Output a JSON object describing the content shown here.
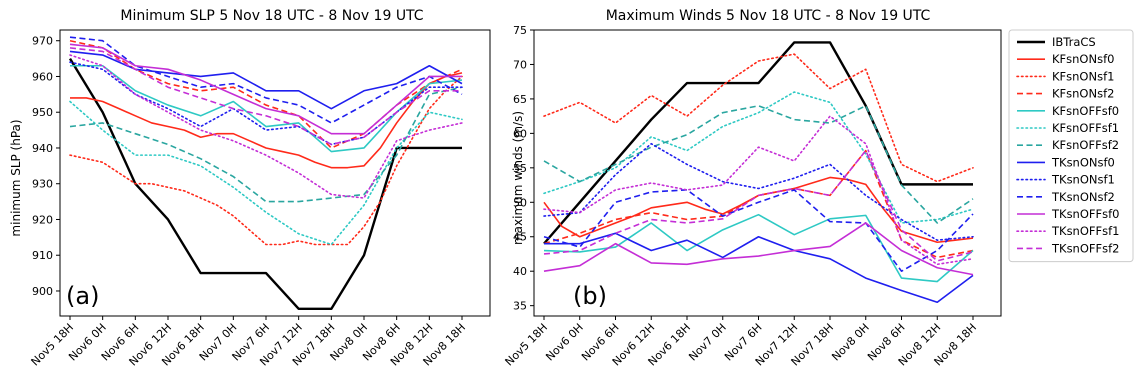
{
  "chart_data": [
    {
      "type": "line",
      "panel_label": "(a)",
      "title": "Minimum SLP 5 Nov 18 UTC - 8 Nov 19 UTC",
      "xlabel": "",
      "ylabel": "minimum SLP (hPa)",
      "ylim": [
        893,
        973
      ],
      "yticks": [
        900,
        910,
        920,
        930,
        940,
        950,
        960,
        970
      ],
      "categories": [
        "Nov5 18H",
        "Nov6 0H",
        "Nov6 6H",
        "Nov6 12H",
        "Nov6 18H",
        "Nov7 0H",
        "Nov7 6H",
        "Nov7 12H",
        "Nov7 18H",
        "Nov8 0H",
        "Nov8 6H",
        "Nov8 12H",
        "Nov8 18H"
      ],
      "grid": false,
      "series": [
        {
          "name": "IBTraCS",
          "x": [
            0,
            1,
            2,
            3,
            4,
            5,
            6,
            7,
            8,
            9,
            10,
            11,
            12
          ],
          "y": [
            965,
            950,
            930,
            920,
            905,
            905,
            905,
            895,
            895,
            910,
            940,
            940,
            940
          ]
        },
        {
          "name": "KFsnONsf0",
          "x": [
            0,
            0.5,
            1,
            1.5,
            2,
            2.5,
            3,
            3.5,
            4,
            4.5,
            5,
            5.5,
            6,
            6.5,
            7,
            7.5,
            8,
            8.5,
            9,
            9.5,
            10,
            10.5,
            11,
            11.5,
            12
          ],
          "y": [
            954,
            954,
            953,
            951,
            949,
            947,
            946,
            945,
            943,
            944,
            944,
            942,
            940,
            939,
            938,
            936,
            934.5,
            934.5,
            935,
            940,
            947,
            953,
            958,
            960,
            961
          ]
        },
        {
          "name": "KFsnONsf1",
          "x": [
            0,
            0.5,
            1,
            1.5,
            2,
            2.5,
            3,
            3.5,
            4,
            4.5,
            5,
            5.5,
            6,
            6.5,
            7,
            7.5,
            8,
            8.5,
            9,
            9.5,
            10,
            10.5,
            11,
            11.5,
            12
          ],
          "y": [
            938,
            937,
            936,
            933,
            930,
            930,
            929,
            928,
            926,
            924,
            921,
            917,
            913,
            913,
            914,
            913,
            913,
            913,
            918,
            925,
            935,
            943,
            951,
            956,
            960
          ]
        },
        {
          "name": "KFsnONsf2",
          "x": [
            0,
            1,
            2,
            3,
            4,
            5,
            6,
            7,
            8,
            9,
            10,
            11,
            12
          ],
          "y": [
            970,
            968,
            962,
            958,
            956,
            957,
            952,
            949,
            940,
            944,
            952,
            958,
            962
          ]
        },
        {
          "name": "KFsnOFFsf0",
          "x": [
            0,
            1,
            2,
            3,
            4,
            5,
            6,
            7,
            8,
            9,
            10,
            11,
            12
          ],
          "y": [
            963,
            963,
            956,
            952,
            949,
            953,
            946,
            947,
            939,
            940,
            950,
            958,
            959
          ]
        },
        {
          "name": "KFsnOFFsf1",
          "x": [
            0,
            1,
            2,
            3,
            4,
            5,
            6,
            7,
            8,
            9,
            10,
            11,
            12
          ],
          "y": [
            953,
            945,
            938,
            938,
            935,
            929,
            922,
            916,
            913,
            924,
            940,
            950,
            948
          ]
        },
        {
          "name": "KFsnOFFsf2",
          "x": [
            0,
            1,
            2,
            3,
            4,
            5,
            6,
            7,
            8,
            9,
            10,
            11,
            12
          ],
          "y": [
            946,
            947,
            944,
            941,
            937,
            932,
            925,
            925,
            926,
            927,
            938,
            955,
            957
          ]
        },
        {
          "name": "TKsnONsf0",
          "x": [
            0,
            1,
            2,
            3,
            4,
            5,
            6,
            7,
            8,
            9,
            10,
            11,
            12
          ],
          "y": [
            967,
            966,
            962,
            961,
            960,
            961,
            956,
            956,
            951,
            956,
            958,
            963,
            958
          ]
        },
        {
          "name": "TKsnONsf1",
          "x": [
            0,
            1,
            2,
            3,
            4,
            5,
            6,
            7,
            8,
            9,
            10,
            11,
            12
          ],
          "y": [
            964,
            962,
            955,
            951,
            946,
            951,
            945,
            946,
            941,
            943,
            950,
            957,
            957
          ]
        },
        {
          "name": "TKsnONsf2",
          "x": [
            0,
            1,
            2,
            3,
            4,
            5,
            6,
            7,
            8,
            9,
            10,
            11,
            12
          ],
          "y": [
            971,
            970,
            963,
            960,
            957,
            958,
            954,
            952,
            947,
            952,
            957,
            960,
            955
          ]
        },
        {
          "name": "TKsnOFFsf0",
          "x": [
            0,
            1,
            2,
            3,
            4,
            5,
            6,
            7,
            8,
            9,
            10,
            11,
            12
          ],
          "y": [
            969,
            968,
            963,
            962,
            959,
            955,
            951,
            949,
            944,
            944,
            952,
            960,
            960
          ]
        },
        {
          "name": "TKsnOFFsf1",
          "x": [
            0,
            1,
            2,
            3,
            4,
            5,
            6,
            7,
            8,
            9,
            10,
            11,
            12
          ],
          "y": [
            966,
            963,
            955,
            950,
            945,
            942,
            938,
            933,
            927,
            926,
            942,
            945,
            947
          ]
        },
        {
          "name": "TKsnOFFsf2",
          "x": [
            0,
            1,
            2,
            3,
            4,
            5,
            6,
            7,
            8,
            9,
            10,
            11,
            12
          ],
          "y": [
            968,
            967,
            962,
            957,
            954,
            951,
            949,
            946,
            941,
            943,
            950,
            956,
            956
          ]
        }
      ]
    },
    {
      "type": "line",
      "panel_label": "(b)",
      "title": "Maximum Winds 5 Nov 18 UTC - 8 Nov 19 UTC",
      "xlabel": "",
      "ylabel": "maximum winds (m/s)",
      "ylim": [
        33.5,
        75
      ],
      "yticks": [
        35,
        40,
        45,
        50,
        55,
        60,
        65,
        70,
        75
      ],
      "categories": [
        "Nov5 18H",
        "Nov6 0H",
        "Nov6 6H",
        "Nov6 12H",
        "Nov6 18H",
        "Nov7 0H",
        "Nov7 6H",
        "Nov7 12H",
        "Nov7 18H",
        "Nov8 0H",
        "Nov8 6H",
        "Nov8 12H",
        "Nov8 18H"
      ],
      "grid": false,
      "series": [
        {
          "name": "IBTraCS",
          "x": [
            0,
            1,
            2,
            3,
            4,
            5,
            6,
            7,
            8,
            9,
            10,
            11,
            12
          ],
          "y": [
            44,
            50,
            56,
            62,
            67.3,
            67.3,
            67.3,
            73.2,
            73.2,
            64,
            52.6,
            52.6,
            52.6
          ]
        },
        {
          "name": "KFsnONsf0",
          "x": [
            0,
            0.5,
            1,
            1.5,
            2,
            2.5,
            3,
            3.5,
            4,
            4.5,
            5,
            5.5,
            6,
            6.5,
            7,
            7.5,
            8,
            8.5,
            9,
            9.5,
            10,
            10.5,
            11,
            11.5,
            12
          ],
          "y": [
            50,
            46.5,
            45,
            46,
            47,
            48,
            49.2,
            49.6,
            50,
            49,
            48.3,
            49.6,
            51,
            51.5,
            52,
            52.8,
            53.6,
            53.3,
            52.6,
            49,
            45.8,
            45,
            44.2,
            44.5,
            44.8
          ]
        },
        {
          "name": "KFsnONsf1",
          "x": [
            0,
            1,
            2,
            3,
            4,
            5,
            6,
            7,
            8,
            9,
            10,
            11,
            12
          ],
          "y": [
            62.5,
            64.5,
            61.5,
            65.5,
            62.5,
            67,
            70.5,
            71.5,
            66.5,
            69.3,
            55.5,
            53,
            55
          ]
        },
        {
          "name": "KFsnONsf2",
          "x": [
            0,
            1,
            2,
            3,
            4,
            5,
            6,
            7,
            8,
            9,
            10,
            11,
            12
          ],
          "y": [
            44,
            45.5,
            47.5,
            48.5,
            47.5,
            48,
            51,
            52,
            51,
            57.5,
            44.5,
            42,
            43
          ]
        },
        {
          "name": "KFsnOFFsf0",
          "x": [
            0,
            1,
            2,
            3,
            4,
            5,
            6,
            7,
            8,
            9,
            10,
            11,
            12
          ],
          "y": [
            43,
            42.8,
            43.5,
            47,
            43,
            46,
            48.2,
            45.3,
            47.6,
            48.1,
            39,
            38.5,
            43
          ]
        },
        {
          "name": "KFsnOFFsf1",
          "x": [
            0,
            1,
            2,
            3,
            4,
            5,
            6,
            7,
            8,
            9,
            10,
            11,
            12
          ],
          "y": [
            51.3,
            53,
            55,
            59.5,
            57.5,
            61,
            63,
            66,
            64.5,
            57,
            47,
            47.5,
            49
          ]
        },
        {
          "name": "KFsnOFFsf2",
          "x": [
            0,
            1,
            2,
            3,
            4,
            5,
            6,
            7,
            8,
            9,
            10,
            11,
            12
          ],
          "y": [
            56,
            53,
            55.5,
            58,
            59.8,
            63,
            64,
            62,
            61.5,
            64,
            52.5,
            47,
            50.5
          ]
        },
        {
          "name": "TKsnONsf0",
          "x": [
            0,
            1,
            2,
            3,
            4,
            5,
            6,
            7,
            8,
            9,
            10,
            11,
            12
          ],
          "y": [
            44,
            44,
            45.5,
            43,
            44.5,
            42,
            45,
            43,
            41.8,
            39,
            37.2,
            35.5,
            39.4
          ]
        },
        {
          "name": "TKsnONsf1",
          "x": [
            0,
            1,
            2,
            3,
            4,
            5,
            6,
            7,
            8,
            9,
            10,
            11,
            12
          ],
          "y": [
            48,
            48.5,
            54,
            58.5,
            55.5,
            53,
            52,
            53.5,
            55.5,
            51,
            47.5,
            44.5,
            45
          ]
        },
        {
          "name": "TKsnONsf2",
          "x": [
            0,
            1,
            2,
            3,
            4,
            5,
            6,
            7,
            8,
            9,
            10,
            11,
            12
          ],
          "y": [
            45,
            43.5,
            50,
            51.5,
            51.8,
            48,
            50,
            51.8,
            47.2,
            47,
            40,
            43,
            48.3
          ]
        },
        {
          "name": "TKsnOFFsf0",
          "x": [
            0,
            1,
            2,
            3,
            4,
            5,
            6,
            7,
            8,
            9,
            10,
            11,
            12
          ],
          "y": [
            40,
            40.8,
            44,
            41.2,
            41,
            41.8,
            42.2,
            43,
            43.6,
            47,
            43,
            40.5,
            39.5
          ]
        },
        {
          "name": "TKsnOFFsf1",
          "x": [
            0,
            1,
            2,
            3,
            4,
            5,
            6,
            7,
            8,
            9,
            10,
            11,
            12
          ],
          "y": [
            49,
            48.5,
            51.8,
            52.8,
            51.8,
            52.5,
            58,
            56,
            62.5,
            58.5,
            44.5,
            41,
            41.8
          ]
        },
        {
          "name": "TKsnOFFsf2",
          "x": [
            0,
            1,
            2,
            3,
            4,
            5,
            6,
            7,
            8,
            9,
            10,
            11,
            12
          ],
          "y": [
            42.5,
            43,
            45.5,
            47.5,
            47,
            47.6,
            51,
            52,
            51,
            57.5,
            46,
            41.5,
            42.8
          ]
        }
      ]
    }
  ],
  "legend": {
    "placement": "right",
    "entries": [
      {
        "name": "IBTraCS",
        "color": "#000000",
        "dash": "solid"
      },
      {
        "name": "KFsnONsf0",
        "color": "#ff2a1a",
        "dash": "solid"
      },
      {
        "name": "KFsnONsf1",
        "color": "#ff2a1a",
        "dash": "dotted"
      },
      {
        "name": "KFsnONsf2",
        "color": "#ff2a1a",
        "dash": "dashed"
      },
      {
        "name": "KFsnOFFsf0",
        "color": "#2ec9c4",
        "dash": "solid"
      },
      {
        "name": "KFsnOFFsf1",
        "color": "#2ec9c4",
        "dash": "dotted"
      },
      {
        "name": "KFsnOFFsf2",
        "color": "#2aa6a0",
        "dash": "dashed"
      },
      {
        "name": "TKsnONsf0",
        "color": "#1f1fef",
        "dash": "solid"
      },
      {
        "name": "TKsnONsf1",
        "color": "#1f1fef",
        "dash": "dotted"
      },
      {
        "name": "TKsnONsf2",
        "color": "#1f1fef",
        "dash": "dashed"
      },
      {
        "name": "TKsnOFFsf0",
        "color": "#c42ed6",
        "dash": "solid"
      },
      {
        "name": "TKsnOFFsf1",
        "color": "#c42ed6",
        "dash": "dotted"
      },
      {
        "name": "TKsnOFFsf2",
        "color": "#c42ed6",
        "dash": "dashed"
      }
    ]
  }
}
